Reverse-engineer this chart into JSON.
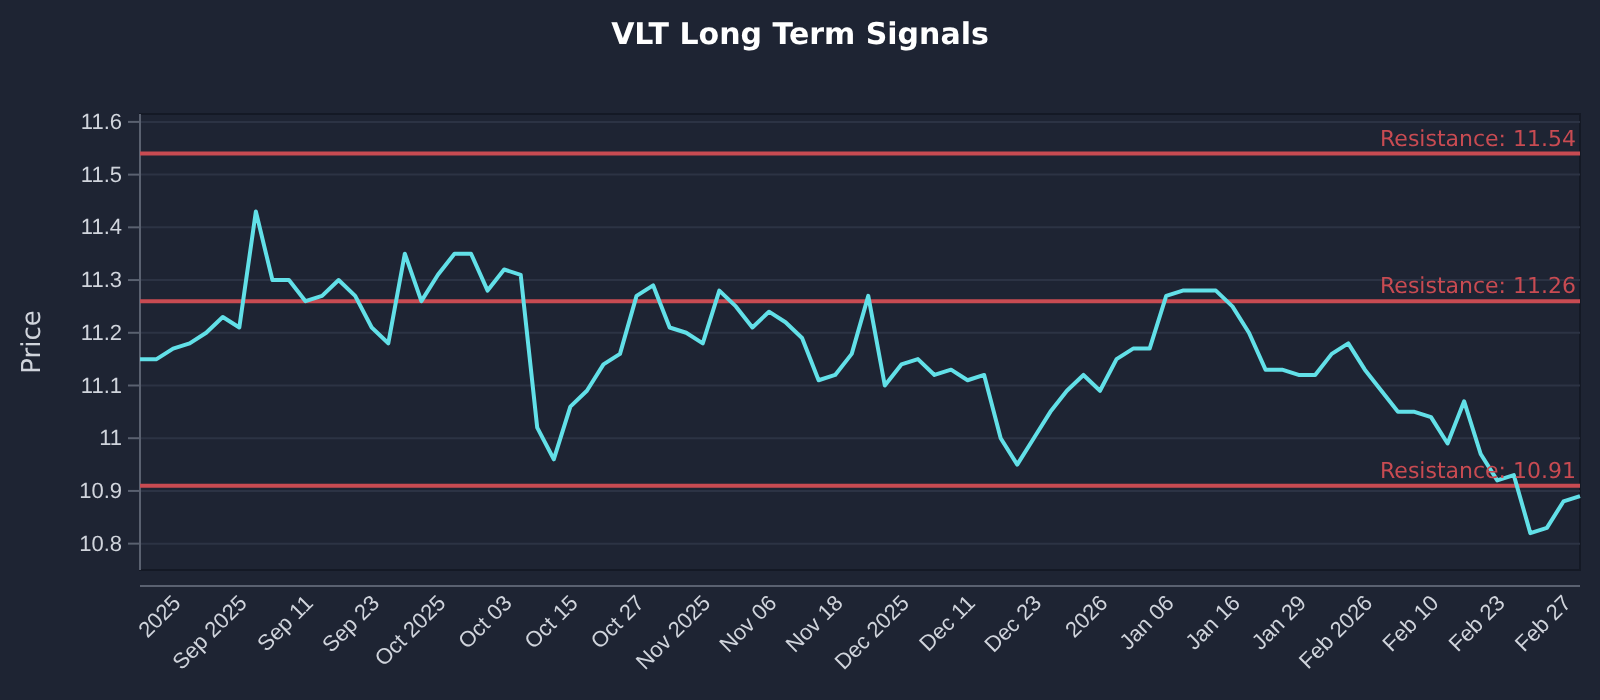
{
  "chart_data": {
    "type": "line",
    "title": "VLT Long Term Signals",
    "ylabel": "Price",
    "categories": [
      null,
      null,
      "2025",
      null,
      null,
      null,
      "Sep 2025",
      null,
      null,
      null,
      "Sep 11",
      null,
      null,
      null,
      "Sep 23",
      null,
      null,
      null,
      "Oct 2025",
      null,
      null,
      null,
      "Oct 03",
      null,
      null,
      null,
      "Oct 15",
      null,
      null,
      null,
      "Oct 27",
      null,
      null,
      null,
      "Nov 2025",
      null,
      null,
      null,
      "Nov 06",
      null,
      null,
      null,
      "Nov 18",
      null,
      null,
      null,
      "Dec 2025",
      null,
      null,
      null,
      "Dec 11",
      null,
      null,
      null,
      "Dec 23",
      null,
      null,
      null,
      "2026",
      null,
      null,
      null,
      "Jan 06",
      null,
      null,
      null,
      "Jan 16",
      null,
      null,
      null,
      "Jan 29",
      null,
      null,
      null,
      "Feb 2026",
      null,
      null,
      null,
      "Feb 10",
      null,
      null,
      null,
      "Feb 23",
      null,
      null,
      null,
      "Feb 27",
      null
    ],
    "series": [
      {
        "color": "#62e0e8",
        "values": [
          11.15,
          11.15,
          11.17,
          11.18,
          11.2,
          11.23,
          11.21,
          11.43,
          11.3,
          11.3,
          11.26,
          11.27,
          11.3,
          11.27,
          11.21,
          11.18,
          11.35,
          11.26,
          11.31,
          11.35,
          11.35,
          11.28,
          11.32,
          11.31,
          11.02,
          10.96,
          11.06,
          11.09,
          11.14,
          11.16,
          11.27,
          11.29,
          11.21,
          11.2,
          11.18,
          11.28,
          11.25,
          11.21,
          11.24,
          11.22,
          11.19,
          11.11,
          11.12,
          11.16,
          11.27,
          11.1,
          11.14,
          11.15,
          11.12,
          11.13,
          11.11,
          11.12,
          11.0,
          10.95,
          11.0,
          11.05,
          11.09,
          11.12,
          11.09,
          11.15,
          11.17,
          11.17,
          11.27,
          11.28,
          11.28,
          11.28,
          11.25,
          11.2,
          11.13,
          11.13,
          11.12,
          11.12,
          11.16,
          11.18,
          11.13,
          11.09,
          11.05,
          11.05,
          11.04,
          10.99,
          11.07,
          10.97,
          10.92,
          10.93,
          10.82,
          10.83,
          10.88,
          10.89
        ]
      }
    ],
    "ylim": [
      10.75,
      11.615
    ],
    "yticks": [
      10.8,
      10.9,
      11.0,
      11.1,
      11.2,
      11.3,
      11.4,
      11.5,
      11.6
    ],
    "grid": "y",
    "line_style": "solid",
    "ref_lines": [
      {
        "axis": "y",
        "value": 11.54,
        "label": "Resistance: 11.54",
        "color": "#c84b52"
      },
      {
        "axis": "y",
        "value": 11.26,
        "label": "Resistance: 11.26",
        "color": "#c84b52"
      },
      {
        "axis": "y",
        "value": 10.91,
        "label": "Resistance: 10.91",
        "color": "#c84b52"
      }
    ]
  }
}
